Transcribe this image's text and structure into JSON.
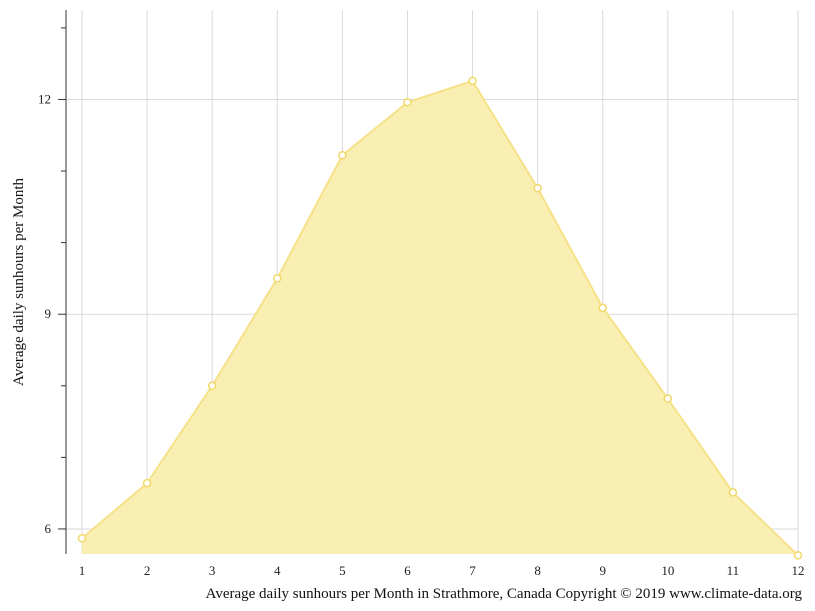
{
  "chart_data": {
    "type": "area",
    "title": "",
    "xlabel": "Average daily sunhours per Month in Strathmore, Canada Copyright © 2019 www.climate-data.org",
    "ylabel": "Average daily sunhours per Month",
    "x": [
      1,
      2,
      3,
      4,
      5,
      6,
      7,
      8,
      9,
      10,
      11,
      12
    ],
    "x_tick_labels": [
      "1",
      "2",
      "3",
      "4",
      "5",
      "6",
      "7",
      "8",
      "9",
      "10",
      "11",
      "12"
    ],
    "y_ticks": [
      6,
      7,
      8,
      9,
      10,
      11,
      12,
      13
    ],
    "y_tick_labels": [
      "6",
      "",
      "",
      "9",
      "",
      "",
      "12",
      ""
    ],
    "xlim": [
      1,
      12
    ],
    "ylim": [
      5.65,
      13.25
    ],
    "grid": true,
    "legend": "none",
    "series": [
      {
        "values": [
          5.87,
          6.64,
          8.0,
          9.5,
          11.22,
          11.96,
          12.26,
          10.76,
          9.09,
          7.82,
          6.51,
          5.63
        ]
      }
    ],
    "colors": {
      "fill": "#f9eeaf",
      "line": "#f6e188",
      "marker_stroke": "#f0d868",
      "marker_fill": "#ffffff",
      "grid": "#d9d9d9",
      "axis": "#333333"
    }
  }
}
